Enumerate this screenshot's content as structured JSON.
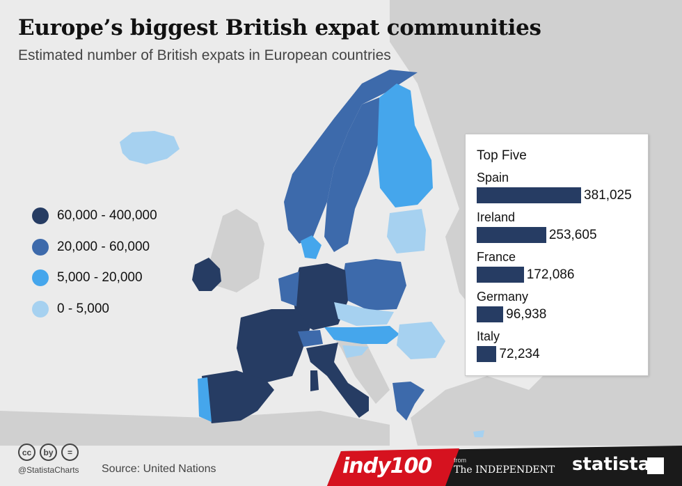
{
  "chart_data": {
    "type": "bar",
    "title": "Europe’s biggest British expat communities",
    "subtitle": "Estimated number of British expats in European countries",
    "panel_title": "Top Five",
    "categories": [
      "Spain",
      "Ireland",
      "France",
      "Germany",
      "Italy"
    ],
    "values": [
      381025,
      253605,
      172086,
      96938,
      72234
    ],
    "value_labels": [
      "381,025",
      "253,605",
      "172,086",
      "96,938",
      "72,234"
    ],
    "bar_color": "#263c63",
    "legend": [
      {
        "label": "60,000 - 400,000",
        "color": "#263c63"
      },
      {
        "label": "20,000 - 60,000",
        "color": "#3d6aab"
      },
      {
        "label": "5,000 - 20,000",
        "color": "#45a6ec"
      },
      {
        "label": "0 - 5,000",
        "color": "#a6d1f0"
      }
    ],
    "map_classes": {
      "60,000 - 400,000": [
        "Spain",
        "Ireland",
        "France",
        "Germany",
        "Italy"
      ],
      "20,000 - 60,000": [
        "Norway",
        "Sweden",
        "Poland",
        "Belgium",
        "Netherlands",
        "Switzerland",
        "Greece"
      ],
      "5,000 - 20,000": [
        "Finland",
        "Portugal",
        "Denmark",
        "Hungary",
        "Austria"
      ],
      "0 - 5,000": [
        "Iceland",
        "Estonia",
        "Latvia",
        "Lithuania",
        "Czech Republic",
        "Slovakia",
        "Romania",
        "Croatia",
        "Cyprus",
        "Malta"
      ]
    }
  },
  "footer": {
    "handle": "@StatistaCharts",
    "source": "Source: United Nations",
    "cc_icons": [
      "cc",
      "by",
      "="
    ],
    "brand_indy": "indy100",
    "brand_from": "from",
    "brand_independent": "The INDEPENDENT",
    "brand_statista": "statista"
  }
}
